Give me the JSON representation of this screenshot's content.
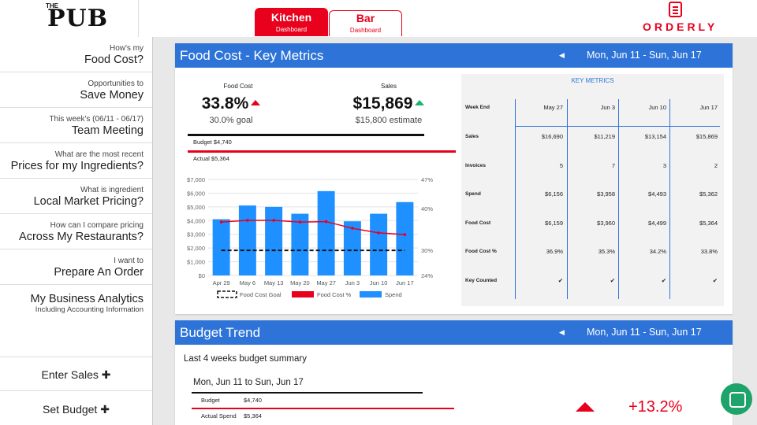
{
  "brand": {
    "logo_small": "THE",
    "logo_text": "PUB",
    "app_name": "ORDERLY",
    "accent": "#e8001c",
    "blue": "#2e74d8"
  },
  "tabs": [
    {
      "title": "Kitchen",
      "subtitle": "Dashboard"
    },
    {
      "title": "Bar",
      "subtitle": "Dashboard"
    }
  ],
  "sidebar": {
    "items": [
      {
        "small": "How's my",
        "large": "Food Cost?"
      },
      {
        "small": "Opportunities to",
        "large": "Save Money"
      },
      {
        "small": "This week's (06/11 - 06/17)",
        "large": "Team Meeting"
      },
      {
        "small": "What are the most recent",
        "large": "Prices for my Ingredients?"
      },
      {
        "small": "What is ingredient",
        "large": "Local Market Pricing?"
      },
      {
        "small": "How can I compare pricing",
        "large": "Across My Restaurants?"
      },
      {
        "small": "I want to",
        "large": "Prepare An Order"
      }
    ],
    "analytics": {
      "large": "My Business Analytics",
      "small": "Including Accounting Information"
    },
    "enter_sales": "Enter Sales ✚",
    "set_budget": "Set Budget ✚"
  },
  "food_cost_panel": {
    "title": "Food Cost - Key Metrics",
    "range": "Mon, Jun 11 - Sun, Jun 17",
    "food_cost_label": "Food Cost",
    "food_cost_value": "33.8%",
    "food_cost_goal": "30.0% goal",
    "sales_label": "Sales",
    "sales_value": "$15,869",
    "sales_estimate": "$15,800 estimate",
    "budget_label": "Budget $4,740",
    "actual_label": "Actual $5,364"
  },
  "chart_data": {
    "type": "bar",
    "categories": [
      "Apr 29",
      "May 6",
      "May 13",
      "May 20",
      "May 27",
      "Jun 3",
      "Jun 10",
      "Jun 17"
    ],
    "series": [
      {
        "name": "Spend",
        "type": "bar",
        "axis": "left",
        "color": "#1e90ff",
        "values": [
          4100,
          5100,
          5000,
          4500,
          6150,
          3950,
          4500,
          5350
        ]
      },
      {
        "name": "Food Cost %",
        "type": "line",
        "axis": "right",
        "color": "#e8001c",
        "values": [
          36.8,
          37.2,
          37.2,
          36.8,
          36.9,
          35.3,
          34.2,
          33.8
        ]
      },
      {
        "name": "Food Cost Goal",
        "type": "line-dashed",
        "axis": "right",
        "color": "#111111",
        "values": [
          30,
          30,
          30,
          30,
          30,
          30,
          30,
          30
        ]
      }
    ],
    "y_left_ticks": [
      "$0",
      "$1,000",
      "$2,000",
      "$3,000",
      "$4,000",
      "$5,000",
      "$6,000",
      "$7,000"
    ],
    "y_left_range": [
      0,
      7000
    ],
    "y_right_ticks": [
      "24%",
      "30%",
      "40%",
      "47%"
    ],
    "y_right_values": [
      24,
      30,
      40,
      47
    ],
    "y_right_range": [
      24,
      47
    ],
    "legend": [
      "Food Cost Goal",
      "Food Cost %",
      "Spend"
    ],
    "legend_position": "bottom",
    "grid": true
  },
  "key_metrics": {
    "title": "KEY METRICS",
    "columns": [
      "May 27",
      "Jun 3",
      "Jun 10",
      "Jun 17"
    ],
    "header_label": "Week End",
    "rows": [
      {
        "label": "Sales",
        "values": [
          "$16,690",
          "$11,219",
          "$13,154",
          "$15,869"
        ]
      },
      {
        "label": "Invoices",
        "values": [
          "5",
          "7",
          "3",
          "2"
        ]
      },
      {
        "label": "Spend",
        "values": [
          "$6,156",
          "$3,958",
          "$4,493",
          "$5,362"
        ]
      },
      {
        "label": "Food Cost",
        "values": [
          "$6,159",
          "$3,960",
          "$4,499",
          "$5,364"
        ]
      },
      {
        "label": "Food Cost %",
        "values": [
          "36.9%",
          "35.3%",
          "34.2%",
          "33.8%"
        ]
      },
      {
        "label": "Key Counted",
        "values": [
          "✔",
          "✔",
          "✔",
          "✔"
        ]
      }
    ]
  },
  "budget_panel": {
    "title": "Budget Trend",
    "range": "Mon, Jun 11 - Sun, Jun 17",
    "summary": "Last 4 weeks budget summary",
    "week_range": "Mon, Jun 11 to Sun, Jun 17",
    "budget_label": "Budget",
    "budget_value": "$4,740",
    "actual_label": "Actual Spend",
    "actual_value": "$5,364",
    "change": "+13.2%"
  },
  "arrow": "◀"
}
